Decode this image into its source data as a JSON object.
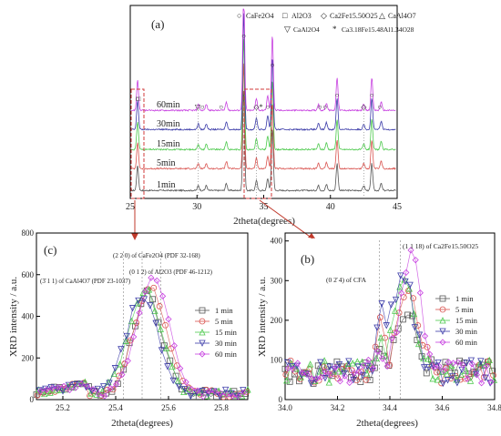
{
  "figure": {
    "panel_a_label": "(a)",
    "panel_b_label": "(b)",
    "panel_c_label": "(c)"
  },
  "legend_a": {
    "row1": [
      {
        "symbol": "○",
        "text": "CaFe2O4"
      },
      {
        "symbol": "□",
        "text": "Al2O3"
      },
      {
        "symbol": "◇",
        "text": "Ca2Fe15.50O25"
      },
      {
        "symbol": "△",
        "text": "CaAl4O7"
      }
    ],
    "row2": [
      {
        "symbol": "▽",
        "text": "CaAl2O4"
      },
      {
        "symbol": "*",
        "text": "Ca3.18Fe15.48Al1.34O28"
      }
    ]
  },
  "annotations_c": {
    "a1": "(2 2 0) of CaFe2O4 (PDF 32-168)",
    "a2": "(0 1 2) of Al2O3 (PDF 46-1212)",
    "a3": "(3̄ 1 1) of CaAl4O7 (PDF 23-1037)"
  },
  "annotations_b": {
    "a1": "(1 1 18) of Ca2Fe15.50O25",
    "a2": "(0 2̄ 4) of CFA"
  },
  "colors": {
    "1min": "#555555",
    "5min": "#d9534f",
    "15min": "#4cc94c",
    "30min": "#3a3aa8",
    "60min": "#c740e0"
  },
  "chart_data": [
    {
      "type": "line",
      "panel": "(a)",
      "xlabel": "2theta(degrees)",
      "ylabel": "",
      "xlim": [
        25,
        45
      ],
      "xticks": [
        25,
        30,
        35,
        40,
        45
      ],
      "series": [
        {
          "name": "1min"
        },
        {
          "name": "5min"
        },
        {
          "name": "15min"
        },
        {
          "name": "30min"
        },
        {
          "name": "60min"
        }
      ],
      "peaks": [
        {
          "x": 25.55,
          "h": 0.25
        },
        {
          "x": 30.1,
          "h": 0.05
        },
        {
          "x": 30.7,
          "h": 0.05
        },
        {
          "x": 32.2,
          "h": 0.07
        },
        {
          "x": 33.5,
          "h": 1.0
        },
        {
          "x": 34.45,
          "h": 0.1
        },
        {
          "x": 35.3,
          "h": 0.12
        },
        {
          "x": 35.65,
          "h": 0.62
        },
        {
          "x": 39.1,
          "h": 0.05
        },
        {
          "x": 39.7,
          "h": 0.06
        },
        {
          "x": 40.5,
          "h": 0.27
        },
        {
          "x": 42.5,
          "h": 0.05
        },
        {
          "x": 43.1,
          "h": 0.27
        },
        {
          "x": 43.8,
          "h": 0.07
        }
      ]
    },
    {
      "type": "scatter",
      "panel": "(c)",
      "xlabel": "2theta(degrees)",
      "ylabel": "XRD intensity / a.u.",
      "xlim": [
        25.1,
        25.9
      ],
      "ylim": [
        0,
        800
      ],
      "xticks": [
        25.2,
        25.4,
        25.6,
        25.8
      ],
      "yticks": [
        0,
        200,
        400,
        600,
        800
      ],
      "legend_position": "right",
      "series": [
        {
          "name": "1 min",
          "center": 25.52,
          "peak": 480,
          "width": 0.055
        },
        {
          "name": "5 min",
          "center": 25.53,
          "peak": 520,
          "width": 0.06
        },
        {
          "name": "15 min",
          "center": 25.51,
          "peak": 500,
          "width": 0.06
        },
        {
          "name": "30 min",
          "center": 25.5,
          "peak": 470,
          "width": 0.06
        },
        {
          "name": "60 min",
          "center": 25.54,
          "peak": 560,
          "width": 0.06
        }
      ]
    },
    {
      "type": "scatter",
      "panel": "(b)",
      "xlabel": "2theta(degrees)",
      "ylabel": "XRD intensity / a.u.",
      "xlim": [
        34.0,
        34.8
      ],
      "ylim": [
        0,
        420
      ],
      "xticks": [
        34.0,
        34.2,
        34.4,
        34.6,
        34.8
      ],
      "yticks": [
        0,
        100,
        200,
        300,
        400
      ],
      "legend_position": "right",
      "series": [
        {
          "name": "1 min",
          "center": 34.46,
          "peak": 180
        },
        {
          "name": "5 min",
          "center": 34.47,
          "peak": 250
        },
        {
          "name": "15 min",
          "center": 34.46,
          "peak": 270
        },
        {
          "name": "30 min",
          "center": 34.45,
          "peak": 330
        },
        {
          "name": "60 min",
          "center": 34.48,
          "peak": 370
        }
      ]
    }
  ]
}
